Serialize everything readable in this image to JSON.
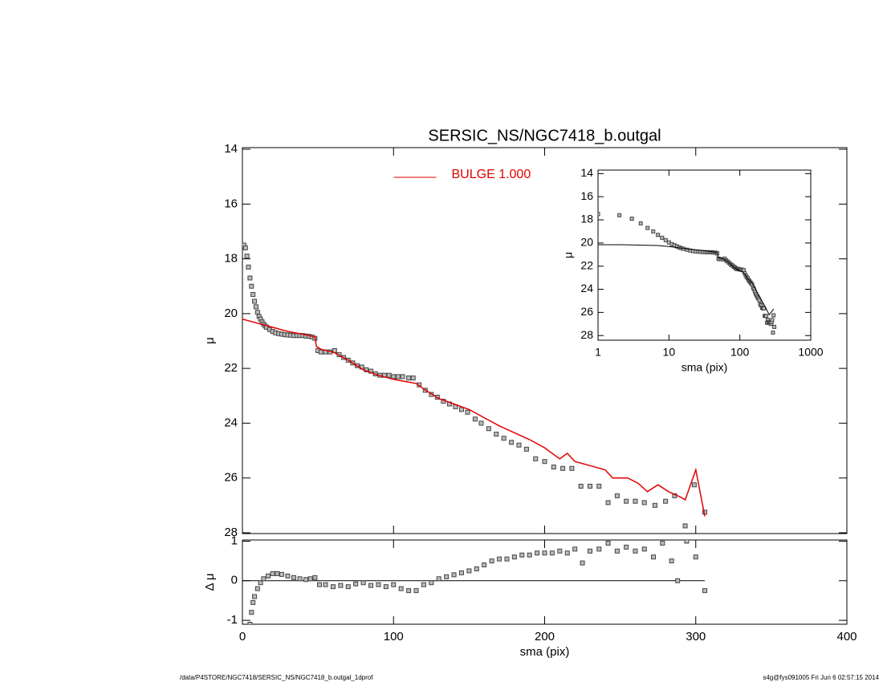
{
  "chart_data": [
    {
      "type": "scatter",
      "title": "SERSIC_NS/NGC7418_b.outgal",
      "ylabel": "μ",
      "xlim": [
        0,
        400
      ],
      "xticks": [
        0,
        100,
        200,
        300,
        400
      ],
      "xtick_labels": false,
      "ylim": [
        28.03,
        13.94
      ],
      "yticks": [
        14,
        16,
        18,
        20,
        22,
        24,
        26,
        28
      ],
      "legend": "upper center",
      "series": [
        {
          "style": "marker",
          "color": "#444444",
          "x": [
            1,
            2,
            3,
            4,
            5,
            6,
            7,
            8,
            9,
            10,
            11,
            12,
            13,
            14,
            15,
            16,
            18,
            20,
            22,
            24,
            26,
            28,
            30,
            32,
            34,
            36,
            38,
            40,
            42,
            44,
            46,
            48,
            50,
            52,
            55,
            58,
            61,
            64,
            67,
            70,
            73,
            76,
            79,
            82,
            85,
            88,
            91,
            94,
            97,
            100,
            103,
            106,
            110,
            113,
            117,
            121,
            125,
            129,
            133,
            137,
            141,
            145,
            149,
            154,
            158,
            163,
            168,
            173,
            178,
            183,
            188,
            194,
            200,
            206,
            212,
            218,
            224,
            230,
            236,
            242,
            248,
            254,
            260,
            266,
            273,
            280,
            286,
            293,
            299,
            306
          ],
          "values": [
            17.5,
            17.6,
            17.9,
            18.3,
            18.7,
            19.0,
            19.3,
            19.55,
            19.75,
            19.95,
            20.1,
            20.2,
            20.3,
            20.38,
            20.45,
            20.5,
            20.58,
            20.65,
            20.7,
            20.73,
            20.75,
            20.77,
            20.78,
            20.79,
            20.8,
            20.8,
            20.8,
            20.8,
            20.82,
            20.83,
            20.85,
            20.9,
            21.35,
            21.4,
            21.4,
            21.4,
            21.35,
            21.5,
            21.6,
            21.7,
            21.8,
            21.9,
            21.95,
            22.05,
            22.1,
            22.2,
            22.25,
            22.25,
            22.25,
            22.3,
            22.3,
            22.3,
            22.35,
            22.35,
            22.6,
            22.8,
            22.95,
            23.05,
            23.2,
            23.3,
            23.4,
            23.5,
            23.6,
            23.85,
            24.0,
            24.2,
            24.4,
            24.55,
            24.7,
            24.8,
            24.95,
            25.3,
            25.4,
            25.6,
            25.65,
            25.65,
            26.3,
            26.3,
            26.3,
            26.9,
            26.65,
            26.85,
            26.85,
            26.9,
            27.0,
            26.85,
            26.65,
            27.75,
            26.25,
            27.25
          ]
        },
        {
          "style": "line",
          "name": "BULGE  1.000",
          "color": "#e00000",
          "x": [
            0,
            10,
            20,
            30,
            40,
            48,
            49,
            52,
            60,
            70,
            80,
            90,
            100,
            110,
            115,
            120,
            130,
            140,
            150,
            160,
            170,
            180,
            190,
            200,
            210,
            215,
            220,
            230,
            240,
            245,
            255,
            262,
            268,
            275,
            282,
            290,
            293,
            300,
            306
          ],
          "values": [
            20.2,
            20.35,
            20.5,
            20.65,
            20.75,
            20.85,
            21.2,
            21.3,
            21.4,
            21.7,
            22.05,
            22.25,
            22.4,
            22.5,
            22.55,
            22.75,
            23.1,
            23.3,
            23.5,
            23.8,
            24.1,
            24.35,
            24.6,
            24.9,
            25.3,
            25.1,
            25.4,
            25.55,
            25.7,
            26.0,
            26.0,
            26.2,
            26.5,
            26.25,
            26.5,
            26.7,
            26.8,
            25.7,
            27.4
          ]
        }
      ]
    },
    {
      "type": "scatter",
      "xlabel": "sma (pix)",
      "ylabel": "Δ μ",
      "xlim": [
        0,
        400
      ],
      "xticks": [
        0,
        100,
        200,
        300,
        400
      ],
      "ylim": [
        -1.1,
        1.03
      ],
      "yticks": [
        -1,
        0,
        1
      ],
      "reference_line": 0,
      "series": [
        {
          "style": "marker",
          "color": "#444444",
          "x": [
            5,
            6,
            7,
            8,
            10,
            12,
            14,
            17,
            20,
            23,
            26,
            30,
            34,
            38,
            42,
            45,
            48,
            51,
            55,
            60,
            65,
            70,
            75,
            80,
            85,
            90,
            95,
            100,
            105,
            110,
            115,
            120,
            125,
            130,
            135,
            140,
            145,
            150,
            155,
            160,
            165,
            170,
            175,
            180,
            185,
            190,
            195,
            200,
            205,
            210,
            215,
            220,
            225,
            230,
            236,
            242,
            248,
            254,
            260,
            266,
            272,
            278,
            284,
            288,
            294,
            300,
            306
          ],
          "values": [
            -1.1,
            -0.8,
            -0.55,
            -0.4,
            -0.2,
            -0.05,
            0.05,
            0.12,
            0.18,
            0.18,
            0.16,
            0.12,
            0.08,
            0.05,
            0.03,
            0.05,
            0.08,
            -0.1,
            -0.1,
            -0.15,
            -0.12,
            -0.15,
            -0.08,
            -0.05,
            -0.12,
            -0.1,
            -0.15,
            -0.1,
            -0.2,
            -0.25,
            -0.25,
            -0.1,
            -0.05,
            0.05,
            0.1,
            0.15,
            0.2,
            0.25,
            0.3,
            0.4,
            0.5,
            0.55,
            0.55,
            0.6,
            0.65,
            0.65,
            0.7,
            0.7,
            0.7,
            0.75,
            0.7,
            0.8,
            0.45,
            0.75,
            0.8,
            0.95,
            0.75,
            0.85,
            0.75,
            0.8,
            0.6,
            0.95,
            0.5,
            0.0,
            1.0,
            0.6,
            -0.25
          ]
        }
      ]
    },
    {
      "type": "scatter",
      "xlabel": "sma (pix)",
      "ylabel": "μ",
      "xlog": true,
      "xlim": [
        1,
        1000
      ],
      "xticks": [
        1,
        10,
        100,
        1000
      ],
      "ylim": [
        28.4,
        13.7
      ],
      "yticks": [
        14,
        16,
        18,
        20,
        22,
        24,
        26,
        28
      ],
      "series": [
        {
          "style": "marker",
          "color": "#444444",
          "x": [
            1,
            2,
            3,
            4,
            5,
            6,
            7,
            8,
            9,
            10,
            11,
            12,
            13,
            14,
            15,
            16,
            18,
            20,
            22,
            24,
            26,
            28,
            30,
            32,
            34,
            36,
            38,
            40,
            42,
            44,
            46,
            48,
            50,
            52,
            55,
            58,
            61,
            64,
            67,
            70,
            73,
            76,
            79,
            82,
            85,
            88,
            91,
            94,
            97,
            100,
            103,
            106,
            110,
            113,
            117,
            121,
            125,
            129,
            133,
            137,
            141,
            145,
            149,
            154,
            158,
            163,
            168,
            173,
            178,
            183,
            188,
            194,
            200,
            206,
            212,
            218,
            224,
            230,
            236,
            242,
            248,
            254,
            260,
            266,
            273,
            280,
            286,
            293,
            299,
            306
          ],
          "values": [
            17.5,
            17.6,
            17.9,
            18.3,
            18.7,
            19.0,
            19.3,
            19.55,
            19.75,
            19.95,
            20.1,
            20.2,
            20.3,
            20.38,
            20.45,
            20.5,
            20.58,
            20.65,
            20.7,
            20.73,
            20.75,
            20.77,
            20.78,
            20.79,
            20.8,
            20.8,
            20.8,
            20.8,
            20.82,
            20.83,
            20.85,
            20.9,
            21.35,
            21.4,
            21.4,
            21.4,
            21.35,
            21.5,
            21.6,
            21.7,
            21.8,
            21.9,
            21.95,
            22.05,
            22.1,
            22.2,
            22.25,
            22.25,
            22.25,
            22.3,
            22.3,
            22.3,
            22.35,
            22.35,
            22.6,
            22.8,
            22.95,
            23.05,
            23.2,
            23.3,
            23.4,
            23.5,
            23.6,
            23.85,
            24.0,
            24.2,
            24.4,
            24.55,
            24.7,
            24.8,
            24.95,
            25.3,
            25.4,
            25.6,
            25.65,
            25.65,
            26.3,
            26.3,
            26.3,
            26.9,
            26.65,
            26.85,
            26.85,
            26.9,
            27.0,
            26.85,
            26.65,
            27.75,
            26.25,
            27.25
          ]
        },
        {
          "style": "line",
          "color": "#000000",
          "x": [
            1,
            2,
            3,
            5,
            7,
            10,
            15,
            20,
            30,
            40,
            48,
            49,
            52,
            60,
            70,
            80,
            90,
            100,
            110,
            120,
            130,
            150,
            170,
            200,
            230,
            260,
            300
          ],
          "values": [
            20.15,
            20.15,
            20.17,
            20.2,
            20.22,
            20.3,
            20.45,
            20.55,
            20.65,
            20.75,
            20.85,
            21.2,
            21.3,
            21.4,
            21.7,
            22.05,
            22.25,
            22.4,
            22.5,
            22.75,
            23.1,
            23.5,
            24.1,
            24.9,
            25.55,
            26.2,
            25.7
          ]
        }
      ]
    }
  ],
  "footer": {
    "left": "/data/P4STORE/NGC7418/SERSIC_NS/NGC7418_b.outgal_1dprof",
    "right": "s4g@fys091005  Fri Jun  6 02:57:15 2014"
  }
}
